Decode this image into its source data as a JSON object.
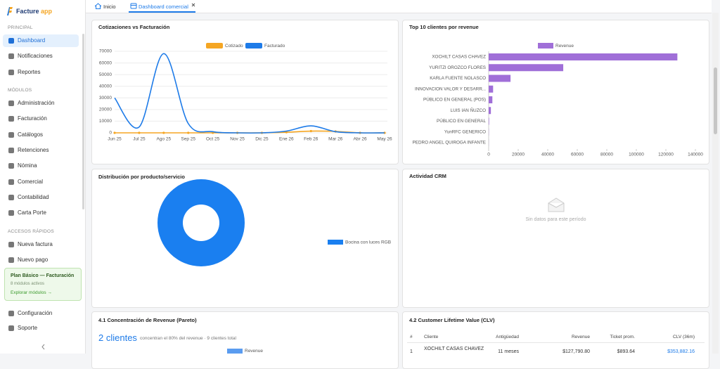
{
  "app": {
    "brand": "Facture",
    "brand_suffix": "app"
  },
  "sidebar": {
    "sections": [
      {
        "title": "PRINCIPAL",
        "items": [
          "Dashboard",
          "Notificaciones",
          "Reportes"
        ]
      },
      {
        "title": "MÓDULOS",
        "items": [
          "Administración",
          "Facturación",
          "Catálogos",
          "Retenciones",
          "Nómina",
          "Comercial",
          "Contabilidad",
          "Carta Porte"
        ]
      },
      {
        "title": "ACCESOS RÁPIDOS",
        "items": [
          "Nueva factura",
          "Nuevo pago"
        ]
      }
    ],
    "plan": {
      "title": "Plan Básico — Facturación",
      "subtitle": "8 módulos activos",
      "link": "Explorar módulos →"
    },
    "footer": [
      "Configuración",
      "Soporte"
    ]
  },
  "tabs": [
    "Inicio",
    "Dashboard comercial"
  ],
  "chart_data": [
    {
      "type": "line",
      "title": "Cotizaciones vs Facturación",
      "categories": [
        "Jun 25",
        "Jul 25",
        "Ago 25",
        "Sep 25",
        "Oct 25",
        "Nov 25",
        "Dic 25",
        "Ene 26",
        "Feb 26",
        "Mar 26",
        "Abr 26",
        "May 26"
      ],
      "series": [
        {
          "name": "Cotizado",
          "color": "#f5a623",
          "values": [
            0,
            0,
            0,
            0,
            0,
            0,
            0,
            500,
            1500,
            1200,
            0,
            0
          ]
        },
        {
          "name": "Facturado",
          "color": "#1e7be8",
          "values": [
            30000,
            5000,
            68000,
            8000,
            1000,
            0,
            0,
            1500,
            6000,
            1000,
            0,
            0
          ]
        }
      ],
      "ylim": [
        0,
        70000
      ],
      "yticks": [
        0,
        10000,
        20000,
        30000,
        40000,
        50000,
        60000,
        70000
      ],
      "grid": true
    },
    {
      "type": "hbar",
      "title": "Top 10 clientes por revenue",
      "categories": [
        "XOCHILT CASAS CHAVEZ",
        "YURITZI OROZCO FLORES",
        "KARLA FUENTE NOLASCO",
        "INNOVACION VALOR Y DESARR...",
        "PÚBLICO EN GENERAL (POS)",
        "LUIS IAN ÑUZCO",
        "PÚBLICO EN GENERAL",
        "YunRFC GENERICO",
        "PEDRO ANGEL QUIROGA INFANTE"
      ],
      "series": [
        {
          "name": "Revenue",
          "color": "#a06fd8",
          "values": [
            127790.8,
            50500,
            14800,
            3000,
            2500,
            1500,
            300,
            100,
            50
          ]
        }
      ],
      "xlim": [
        0,
        140000
      ],
      "xticks": [
        0,
        20000,
        40000,
        60000,
        80000,
        100000,
        120000,
        140000
      ]
    },
    {
      "type": "donut",
      "title": "Distribución por producto/servicio",
      "categories": [
        "Bocina con luces RGB"
      ],
      "values": [
        100
      ],
      "colors": [
        "#1a7ff0"
      ]
    }
  ],
  "crm": {
    "title": "Actividad CRM",
    "empty": "Sin datos para este período"
  },
  "pareto": {
    "title": "4.1 Concentración de Revenue (Pareto)",
    "headline": "2 clientes",
    "note": "concentran el 80% del revenue · 9 clientes total",
    "legend": "Revenue"
  },
  "clv": {
    "title": "4.2 Customer Lifetime Value (CLV)",
    "columns": [
      "#",
      "Cliente",
      "Antigüedad",
      "Revenue",
      "Ticket prom.",
      "CLV (36m)"
    ],
    "rows": [
      [
        "1",
        "XOCHILT CASAS CHAVEZ",
        "11 meses",
        "$127,790.80",
        "$893.64",
        "$353,882.16"
      ]
    ]
  }
}
